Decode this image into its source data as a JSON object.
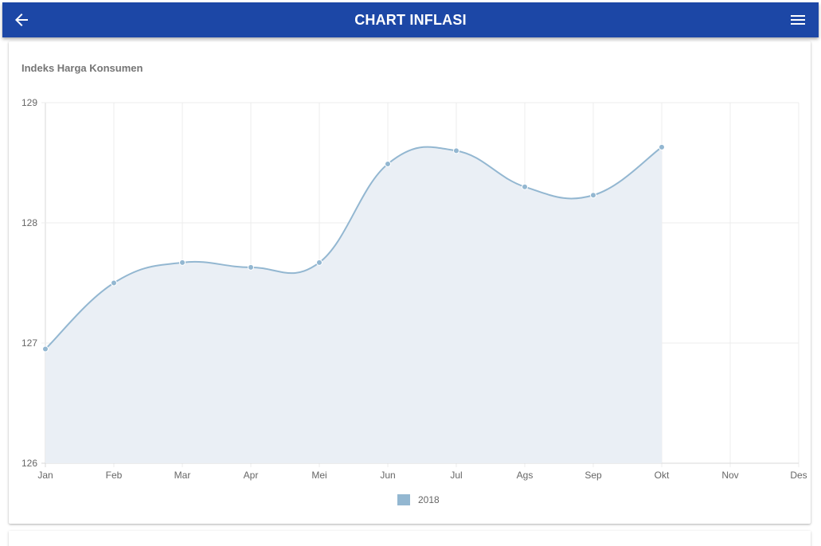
{
  "header": {
    "title": "CHART INFLASI",
    "back_icon": "arrow-left-icon",
    "menu_icon": "hamburger-menu-icon",
    "color": "#1c47a6"
  },
  "card": {
    "title": "Indeks Harga Konsumen"
  },
  "chart_data": {
    "type": "area",
    "title": "Indeks Harga Konsumen",
    "xlabel": "",
    "ylabel": "",
    "categories": [
      "Jan",
      "Feb",
      "Mar",
      "Apr",
      "Mei",
      "Jun",
      "Jul",
      "Ags",
      "Sep",
      "Okt",
      "Nov",
      "Des"
    ],
    "ylim": [
      126,
      129
    ],
    "yticks": [
      126,
      127,
      128,
      129
    ],
    "grid": true,
    "legend_position": "bottom",
    "series": [
      {
        "name": "2018",
        "values": [
          126.95,
          127.5,
          127.67,
          127.63,
          127.67,
          128.49,
          128.6,
          128.3,
          128.23,
          128.63,
          null,
          null
        ],
        "line_color": "#93b7d1",
        "fill_color": "#eaeff5"
      }
    ]
  }
}
